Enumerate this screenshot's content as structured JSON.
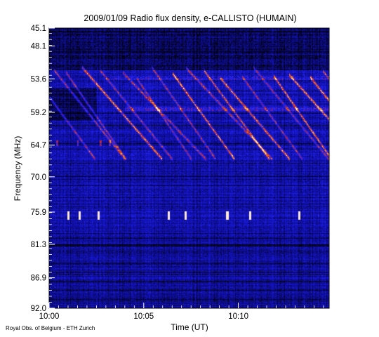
{
  "chart_data": {
    "type": "heatmap",
    "title": "2009/01/09  Radio flux density, e-CALLISTO (HUMAIN)",
    "xlabel": "Time (UT)",
    "ylabel": "Frequency (MHz)",
    "x_ticks": [
      "10:00",
      "10:05",
      "10:10"
    ],
    "x_tick_minutes": [
      0,
      5,
      10
    ],
    "xlim_minutes": [
      0,
      14.8
    ],
    "y_ticks": [
      "45.1",
      "48.1",
      "53.6",
      "59.2",
      "64.7",
      "70.0",
      "75.9",
      "81.3",
      "86.9",
      "92.0"
    ],
    "y_tick_values": [
      45.1,
      48.1,
      53.6,
      59.2,
      64.7,
      70.0,
      75.9,
      81.3,
      86.9,
      92.0
    ],
    "ylim": [
      45.1,
      92.0
    ],
    "y_inverted": true,
    "colormap": [
      "#000000",
      "#0a0a6e",
      "#1414c8",
      "#2a2aff",
      "#c81e1e",
      "#ff8c00",
      "#ffffff"
    ],
    "features": {
      "drifting_bursts_band_mhz": [
        52,
        66
      ],
      "spikes_mhz": [
        75.9,
        76.9
      ],
      "spike_times_minutes": [
        1.0,
        1.6,
        2.6,
        6.3,
        7.2,
        9.4,
        10.6,
        13.2
      ]
    },
    "credit": "Royal Obs. of Belgium - ETH Zurich"
  }
}
